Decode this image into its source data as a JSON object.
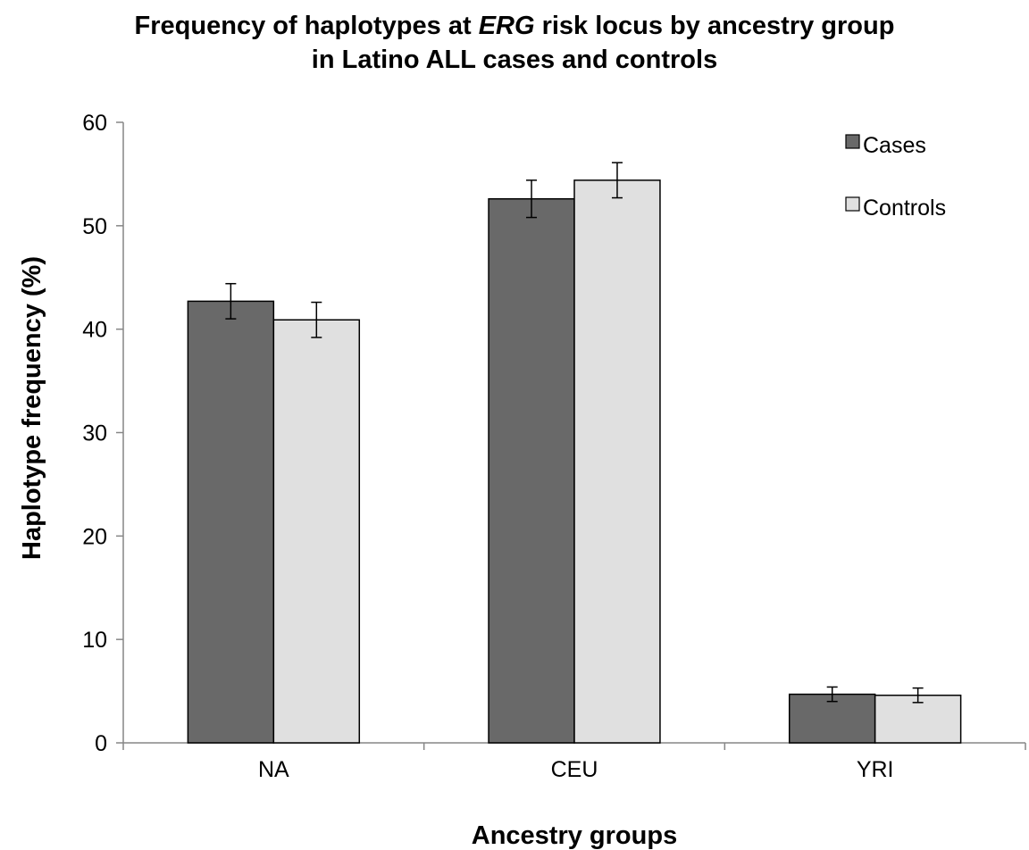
{
  "title": {
    "line1_before": "Frequency of haplotypes at ",
    "line1_italic": "ERG",
    "line1_after": " risk locus by ancestry group",
    "line2": "in Latino ALL cases and controls"
  },
  "chart_data": {
    "type": "bar",
    "title": "Frequency of haplotypes at ERG risk locus by ancestry group in Latino ALL cases and controls",
    "xlabel": "Ancestry groups",
    "ylabel": "Haplotype frequency (%)",
    "ylim": [
      0,
      60
    ],
    "yticks": [
      0,
      10,
      20,
      30,
      40,
      50,
      60
    ],
    "categories": [
      "NA",
      "CEU",
      "YRI"
    ],
    "series": [
      {
        "name": "Cases",
        "values": [
          42.7,
          52.6,
          4.7
        ],
        "error": [
          1.7,
          1.8,
          0.7
        ],
        "color": "#696969"
      },
      {
        "name": "Controls",
        "values": [
          40.9,
          54.4,
          4.6
        ],
        "error": [
          1.7,
          1.7,
          0.7
        ],
        "color": "#e0e0e0"
      }
    ],
    "legend_position": "top-right",
    "grid": false
  }
}
